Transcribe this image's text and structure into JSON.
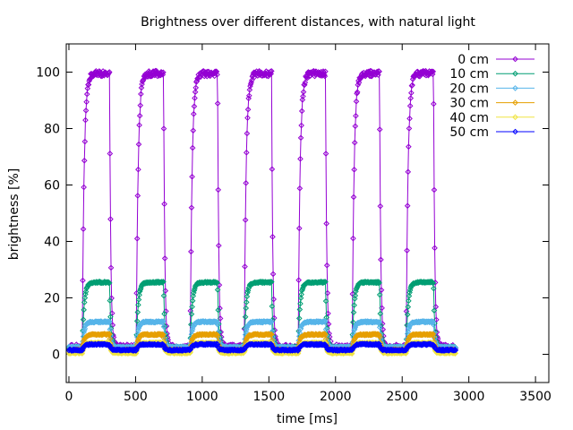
{
  "chart_data": {
    "type": "line",
    "title": "Brightness over different distances, with natural light",
    "xlabel": "time [ms]",
    "ylabel": "brightness [%]",
    "xlim": [
      -20,
      3600
    ],
    "ylim": [
      -10,
      110
    ],
    "xticks": [
      0,
      500,
      1000,
      1500,
      2000,
      2500,
      3000,
      3500
    ],
    "yticks": [
      0,
      20,
      40,
      60,
      80,
      100
    ],
    "grid": false,
    "legend_position": "top-right",
    "pulse_period_ms": 405,
    "pulse_count": 7,
    "first_pulse_start_ms": 100,
    "pulse_on_duration_ms": 205,
    "x_end_ms": 2900,
    "series": [
      {
        "name": "0 cm",
        "color": "#9400d3",
        "marker": "diamond",
        "baseline": 2.5,
        "peak": 99.5
      },
      {
        "name": "10 cm",
        "color": "#009e73",
        "marker": "diamond",
        "baseline": 2.5,
        "peak": 25.5
      },
      {
        "name": "20 cm",
        "color": "#56b4e9",
        "marker": "diamond",
        "baseline": 2.5,
        "peak": 11.5
      },
      {
        "name": "30 cm",
        "color": "#e69f00",
        "marker": "diamond",
        "baseline": 1.5,
        "peak": 7
      },
      {
        "name": "40 cm",
        "color": "#f0e442",
        "marker": "diamond",
        "baseline": 0.5,
        "peak": 4
      },
      {
        "name": "50 cm",
        "color": "#0000ff",
        "marker": "diamond",
        "baseline": 1.5,
        "peak": 3.5
      }
    ]
  }
}
